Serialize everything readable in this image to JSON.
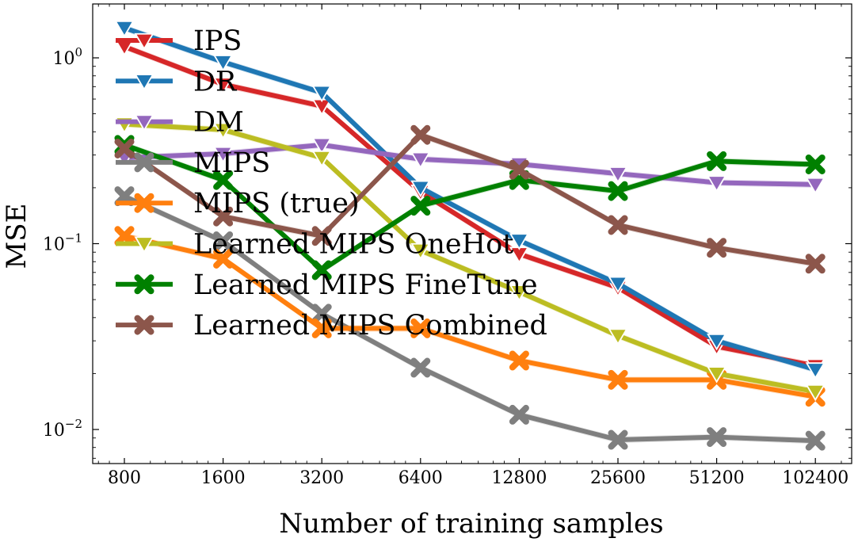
{
  "chart_data": {
    "type": "line",
    "xlabel": "Number of training samples",
    "ylabel": "MSE",
    "x_scale": "log2",
    "y_scale": "log10",
    "x": [
      800,
      1600,
      3200,
      6400,
      12800,
      25600,
      51200,
      102400
    ],
    "x_tick_labels": [
      "800",
      "1600",
      "3200",
      "6400",
      "12800",
      "25600",
      "51200",
      "102400"
    ],
    "y_ticks": [
      {
        "value": 1,
        "base": "10",
        "exp": "0"
      },
      {
        "value": 0.1,
        "base": "10",
        "exp": "−1"
      },
      {
        "value": 0.01,
        "base": "10",
        "exp": "−2"
      }
    ],
    "ylim": [
      0.0065,
      1.9
    ],
    "legend_position": "upper-left",
    "series": [
      {
        "name": "IPS",
        "color": "#d62728",
        "marker": "triangle-down",
        "values": [
          1.15,
          0.72,
          0.55,
          0.19,
          0.088,
          0.058,
          0.028,
          0.022
        ]
      },
      {
        "name": "DR",
        "color": "#1f77b4",
        "marker": "triangle-down",
        "values": [
          1.45,
          0.95,
          0.65,
          0.2,
          0.104,
          0.061,
          0.03,
          0.021
        ]
      },
      {
        "name": "DM",
        "color": "#9467bd",
        "marker": "triangle-down",
        "values": [
          0.29,
          0.305,
          0.34,
          0.285,
          0.268,
          0.238,
          0.213,
          0.208
        ]
      },
      {
        "name": "MIPS",
        "color": "#7f7f7f",
        "marker": "x",
        "values": [
          0.18,
          0.103,
          0.042,
          0.0215,
          0.012,
          0.0088,
          0.0091,
          0.0087
        ]
      },
      {
        "name": "MIPS (true)",
        "color": "#ff7f0e",
        "marker": "x",
        "values": [
          0.11,
          0.083,
          0.035,
          0.035,
          0.0235,
          0.0185,
          0.0185,
          0.015
        ]
      },
      {
        "name": "Learned MIPS OneHot",
        "color": "#bcbd22",
        "marker": "triangle-down",
        "values": [
          0.44,
          0.41,
          0.29,
          0.092,
          0.055,
          0.032,
          0.02,
          0.016
        ]
      },
      {
        "name": "Learned MIPS FineTune",
        "color": "#008000",
        "marker": "x",
        "values": [
          0.34,
          0.22,
          0.072,
          0.16,
          0.22,
          0.192,
          0.278,
          0.267
        ]
      },
      {
        "name": "Learned MIPS Combined",
        "color": "#8c564b",
        "marker": "x",
        "values": [
          0.325,
          0.14,
          0.11,
          0.385,
          0.25,
          0.126,
          0.095,
          0.078
        ]
      }
    ]
  }
}
